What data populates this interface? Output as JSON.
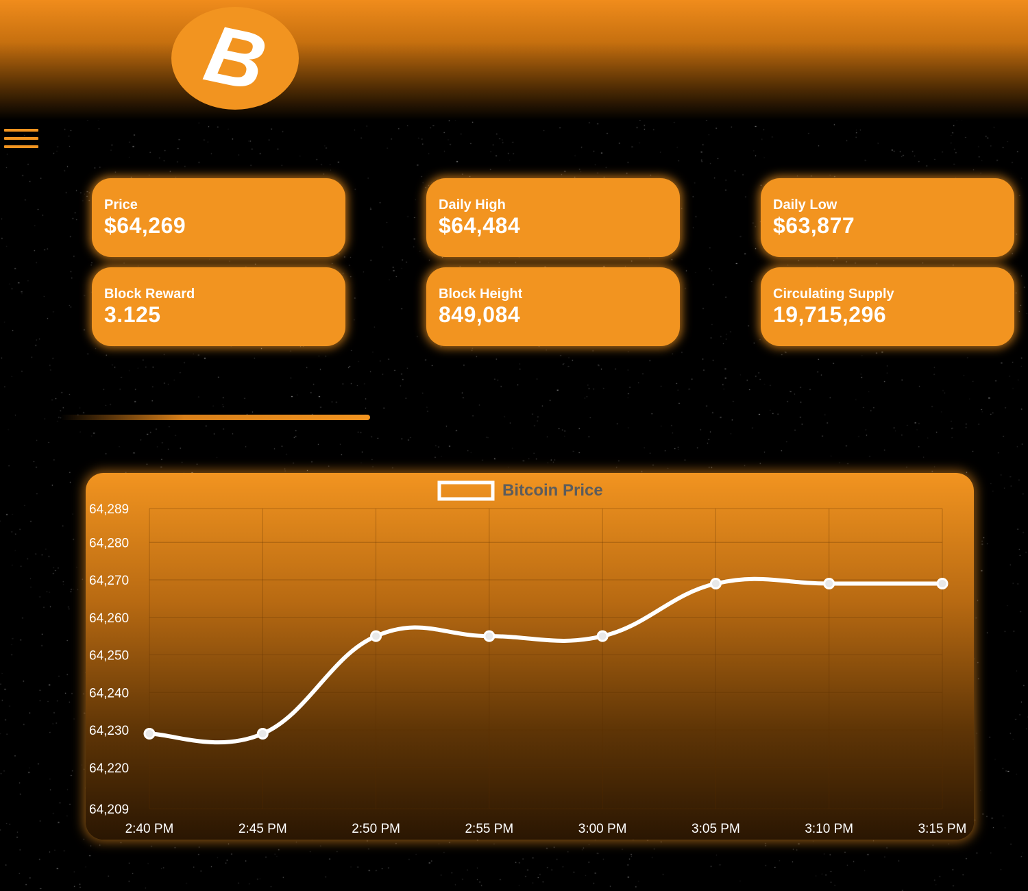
{
  "header": {
    "logo_icon": "bitcoin-logo-icon",
    "logo_glyph": "B"
  },
  "menu": {
    "icon": "hamburger-menu-icon"
  },
  "stats": [
    {
      "label": "Price",
      "value": "$64,269"
    },
    {
      "label": "Daily High",
      "value": "$64,484"
    },
    {
      "label": "Daily Low",
      "value": "$63,877"
    },
    {
      "label": "Block Reward",
      "value": "3.125"
    },
    {
      "label": "Block Height",
      "value": "849,084"
    },
    {
      "label": "Circulating Supply",
      "value": "19,715,296"
    }
  ],
  "colors": {
    "accent": "#f29420",
    "background": "#000000",
    "line": "#ffffff"
  },
  "chart_data": {
    "type": "line",
    "categories": [
      "2:40 PM",
      "2:45 PM",
      "2:50 PM",
      "2:55 PM",
      "3:00 PM",
      "3:05 PM",
      "3:10 PM",
      "3:15 PM"
    ],
    "series": [
      {
        "name": "Bitcoin Price",
        "values": [
          64229,
          64229,
          64255,
          64255,
          64255,
          64269,
          64269,
          64269
        ]
      }
    ],
    "y_ticks": [
      "64,289",
      "64,280",
      "64,270",
      "64,260",
      "64,250",
      "64,240",
      "64,230",
      "64,220",
      "64,209"
    ],
    "ylim": [
      64209,
      64289
    ],
    "grid": true,
    "legend": "top-center"
  }
}
